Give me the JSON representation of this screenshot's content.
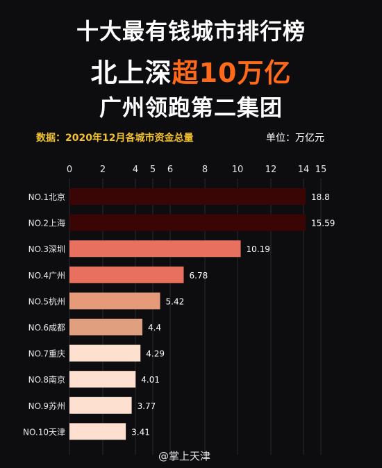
{
  "header": {
    "title_line1": "十大最有钱城市排行榜",
    "title_line2_prefix": "北上深",
    "title_line2_highlight": "超10万亿",
    "title_line3": "广州领跑第二集团",
    "source_label": "数据：2020年12月各城市资金总量",
    "unit_label": "单位：万亿元",
    "highlight_color": "#ff6a1a",
    "source_color": "#f2c230"
  },
  "watermark": "@掌上天津",
  "chart_data": {
    "type": "bar",
    "orientation": "horizontal",
    "categories": [
      "NO.1北京",
      "NO.2上海",
      "NO.3深圳",
      "NO.4广州",
      "NO.5杭州",
      "NO.6成都",
      "NO.7重庆",
      "NO.8南京",
      "NO.9苏州",
      "NO.10天津"
    ],
    "values": [
      18.8,
      15.59,
      10.19,
      6.78,
      5.42,
      4.4,
      4.29,
      4.01,
      3.77,
      3.41
    ],
    "value_labels": [
      "18.8",
      "15.59",
      "10.19",
      "6.78",
      "5.42",
      "4.4",
      "4.29",
      "4.01",
      "3.77",
      "3.41"
    ],
    "bar_colors": [
      "#3a0505",
      "#3a0505",
      "#e8705e",
      "#e8705e",
      "#e59a7a",
      "#e0a080",
      "#fde0cf",
      "#fde0cf",
      "#fde0cf",
      "#fde0cf"
    ],
    "x_ticks": [
      0,
      2,
      4,
      5,
      6,
      8,
      10,
      12,
      14,
      15
    ],
    "x_tick_labels": [
      "0",
      "2",
      "4",
      "5",
      "6",
      "8",
      "10",
      "12",
      "14",
      "15"
    ],
    "xlim": [
      0,
      15
    ],
    "axis_break": true,
    "title": "",
    "xlabel": "",
    "ylabel": "",
    "grid": true
  }
}
